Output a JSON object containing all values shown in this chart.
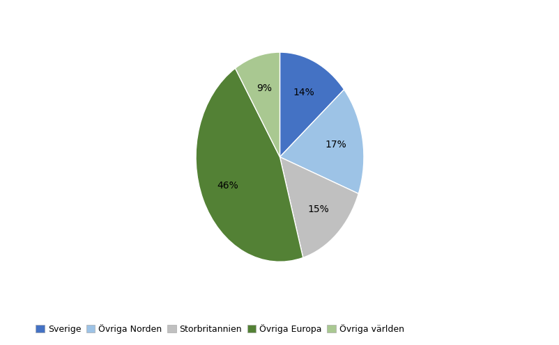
{
  "labels": [
    "Sverige",
    "Övriga Norden",
    "Storbritannien",
    "Övriga Europa",
    "Övriga världen"
  ],
  "values": [
    14,
    17,
    15,
    46,
    9
  ],
  "colors": [
    "#4472C4",
    "#9DC3E6",
    "#C0C0C0",
    "#538135",
    "#A9C891"
  ],
  "background_color": "#FFFFFF",
  "legend_fontsize": 9,
  "autopct_fontsize": 10,
  "startangle": 90,
  "pct_distance": 0.68
}
